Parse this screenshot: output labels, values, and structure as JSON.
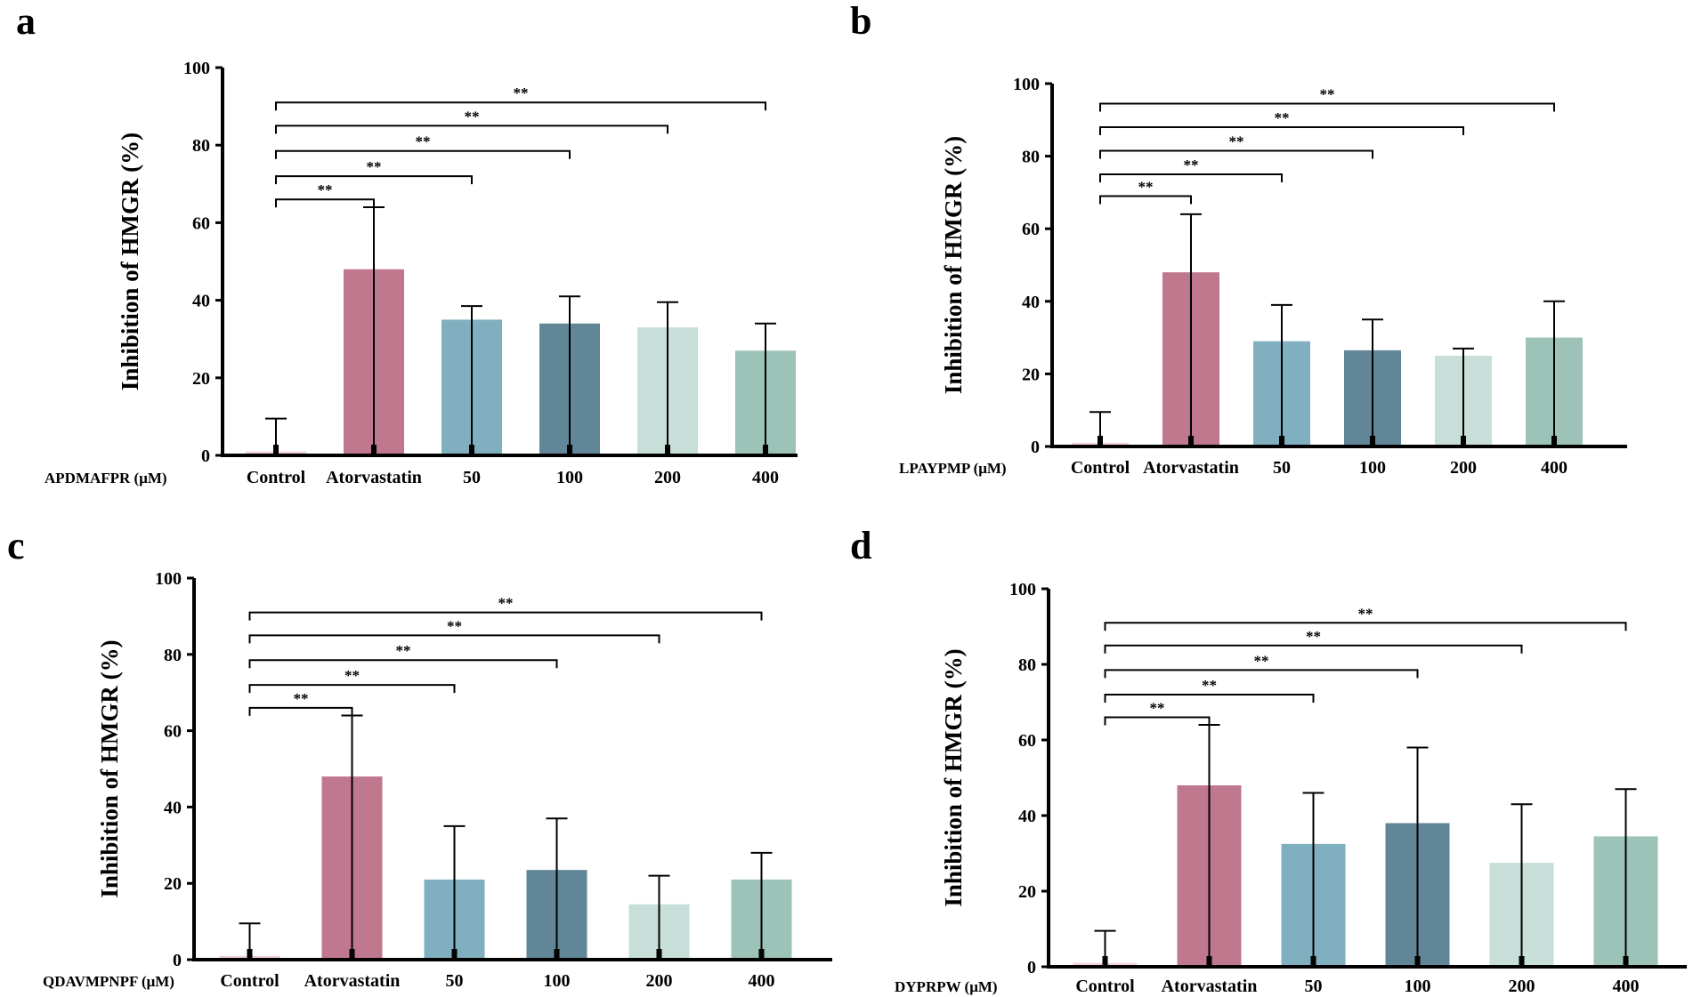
{
  "figure": {
    "panels": [
      "a",
      "b",
      "c",
      "d"
    ]
  },
  "colors": {
    "Control": "#f1d0d8",
    "Atorvastatin": "#c0788f",
    "50": "#80afbf",
    "100": "#618697",
    "200": "#c8ded8",
    "400": "#9dc2b7",
    "axis": "#000000"
  },
  "chart_data": [
    {
      "panel": "a",
      "type": "bar",
      "title": "",
      "xlabel": "APDMAFPR (μM)",
      "ylabel": "Inhibition of HMGR (%)",
      "ylim": [
        0,
        100
      ],
      "yticks": [
        "0",
        "20",
        "40",
        "60",
        "80",
        "100"
      ],
      "categories": [
        "Control",
        "Atorvastatin",
        "50",
        "100",
        "200",
        "400"
      ],
      "values": [
        1,
        48,
        35,
        34,
        33,
        27
      ],
      "errors": [
        8.5,
        16,
        3.5,
        7,
        6.5,
        7
      ],
      "significance": [
        {
          "label": "**",
          "from": "Control",
          "to": "Atorvastatin",
          "y": 66
        },
        {
          "label": "**",
          "from": "Control",
          "to": "50",
          "y": 72
        },
        {
          "label": "**",
          "from": "Control",
          "to": "100",
          "y": 78.5
        },
        {
          "label": "**",
          "from": "Control",
          "to": "200",
          "y": 85
        },
        {
          "label": "**",
          "from": "Control",
          "to": "400",
          "y": 91
        }
      ]
    },
    {
      "panel": "b",
      "type": "bar",
      "title": "",
      "xlabel": "LPAYPMP (μM)",
      "ylabel": "Inhibition of HMGR (%)",
      "ylim": [
        0,
        100
      ],
      "yticks": [
        "0",
        "20",
        "40",
        "60",
        "80",
        "100"
      ],
      "categories": [
        "Control",
        "Atorvastatin",
        "50",
        "100",
        "200",
        "400"
      ],
      "values": [
        1,
        48,
        29,
        26.5,
        25,
        30
      ],
      "errors": [
        8.5,
        16,
        10,
        8.5,
        2,
        10
      ],
      "significance": [
        {
          "label": "**",
          "from": "Control",
          "to": "Atorvastatin",
          "y": 69
        },
        {
          "label": "**",
          "from": "Control",
          "to": "50",
          "y": 75
        },
        {
          "label": "**",
          "from": "Control",
          "to": "100",
          "y": 81.5
        },
        {
          "label": "**",
          "from": "Control",
          "to": "200",
          "y": 88
        },
        {
          "label": "**",
          "from": "Control",
          "to": "400",
          "y": 94.5
        }
      ]
    },
    {
      "panel": "c",
      "type": "bar",
      "title": "",
      "xlabel": "QDAVMPNPF (μM)",
      "ylabel": "Inhibition of HMGR (%)",
      "ylim": [
        0,
        100
      ],
      "yticks": [
        "0",
        "20",
        "40",
        "60",
        "80",
        "100"
      ],
      "categories": [
        "Control",
        "Atorvastatin",
        "50",
        "100",
        "200",
        "400"
      ],
      "values": [
        1,
        48,
        21,
        23.5,
        14.5,
        21
      ],
      "errors": [
        8.5,
        16,
        14,
        13.5,
        7.5,
        7
      ],
      "significance": [
        {
          "label": "**",
          "from": "Control",
          "to": "Atorvastatin",
          "y": 66
        },
        {
          "label": "**",
          "from": "Control",
          "to": "50",
          "y": 72
        },
        {
          "label": "**",
          "from": "Control",
          "to": "100",
          "y": 78.5
        },
        {
          "label": "**",
          "from": "Control",
          "to": "200",
          "y": 85
        },
        {
          "label": "**",
          "from": "Control",
          "to": "400",
          "y": 91
        }
      ]
    },
    {
      "panel": "d",
      "type": "bar",
      "title": "",
      "xlabel": "DYPRPW (μM)",
      "ylabel": "Inhibition of HMGR (%)",
      "ylim": [
        0,
        100
      ],
      "yticks": [
        "0",
        "20",
        "40",
        "60",
        "80",
        "100"
      ],
      "categories": [
        "Control",
        "Atorvastatin",
        "50",
        "100",
        "200",
        "400"
      ],
      "values": [
        1,
        48,
        32.5,
        38,
        27.5,
        34.5
      ],
      "errors": [
        8.5,
        16,
        13.5,
        20,
        15.5,
        12.5
      ],
      "significance": [
        {
          "label": "**",
          "from": "Control",
          "to": "Atorvastatin",
          "y": 66
        },
        {
          "label": "**",
          "from": "Control",
          "to": "50",
          "y": 72
        },
        {
          "label": "**",
          "from": "Control",
          "to": "100",
          "y": 78.5
        },
        {
          "label": "**",
          "from": "Control",
          "to": "200",
          "y": 85
        },
        {
          "label": "**",
          "from": "Control",
          "to": "400",
          "y": 91
        }
      ]
    }
  ]
}
